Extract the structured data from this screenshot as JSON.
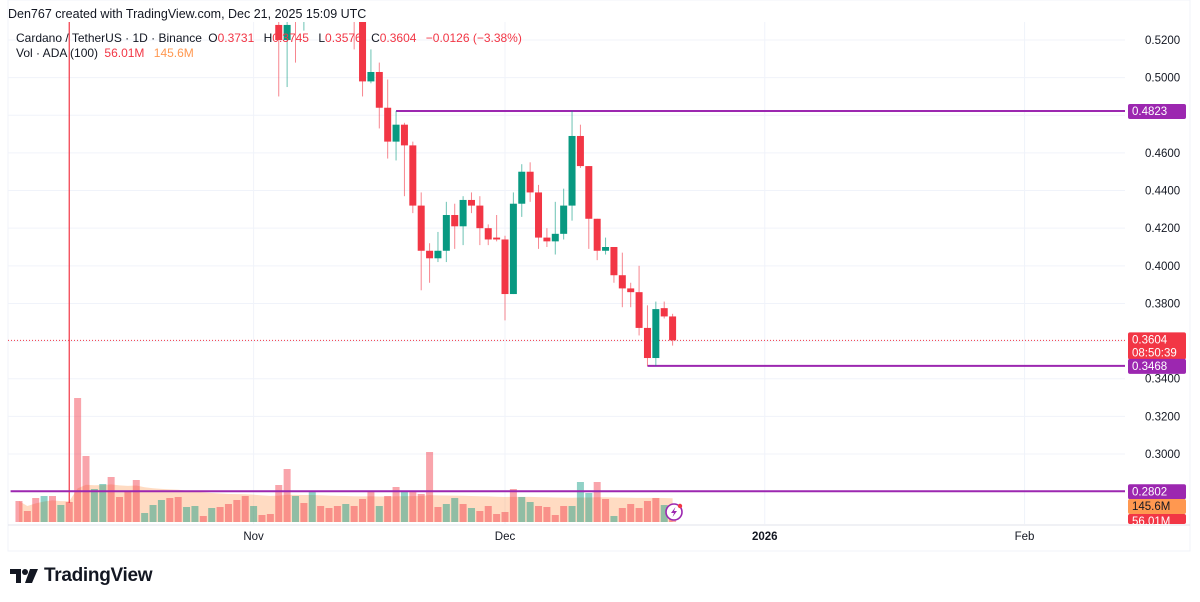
{
  "header": {
    "credit": "Den767 created with TradingView.com, Dec 21, 2025 15:09 UTC",
    "symbol": "Cardano / TetherUS · 1D · Binance",
    "ohlc": {
      "o_label": "O",
      "o": "0.3731",
      "h_label": "H",
      "h": "0.3745",
      "l_label": "L",
      "l": "0.3576",
      "c_label": "C",
      "c": "0.3604",
      "change": "−0.0126 (−3.38%)"
    },
    "volume_legend": {
      "label": "Vol · ADA (100)",
      "vol": "56.01M",
      "ma": "145.6M"
    }
  },
  "colors": {
    "up": "#089981",
    "down": "#F23645",
    "drawing": "#9C27B0",
    "volume_ma": "#FF9850",
    "vline": "#F23645"
  },
  "price_axis": {
    "ticks": [
      "0.5200",
      "0.5000",
      "0.4600",
      "0.4400",
      "0.4200",
      "0.4000",
      "0.3800",
      "0.3400",
      "0.3200",
      "0.3000"
    ]
  },
  "time_axis": {
    "labels": [
      {
        "date": "2025-11-01",
        "label": "Nov"
      },
      {
        "date": "2025-12-01",
        "label": "Dec"
      },
      {
        "date": "2026-01-01",
        "label": "2026"
      },
      {
        "date": "2026-02-01",
        "label": "Feb"
      }
    ]
  },
  "tags": {
    "last_price": "0.3604",
    "countdown": "08:50:39",
    "level_high": "0.4823",
    "level_low": "0.3468",
    "level_vol": "0.2802",
    "vol_ma": "145.6M",
    "vol_last": "56.01M"
  },
  "horizontal_levels": [
    {
      "price": 0.4823,
      "from": "2025-11-18"
    },
    {
      "price": 0.3468,
      "from": "2025-12-18"
    },
    {
      "price": 0.2802,
      "from": "2025-10-03"
    }
  ],
  "vertical_line_date": "2025-10-10",
  "candles": [
    [
      "2025-11-04",
      0.528,
      0.535,
      0.49,
      0.52
    ],
    [
      "2025-11-05",
      0.52,
      0.535,
      0.495,
      0.528
    ],
    [
      "2025-11-06",
      0.545,
      0.55,
      0.508,
      0.535
    ],
    [
      "2025-11-07",
      0.545,
      0.56,
      0.525,
      0.555
    ],
    [
      "2025-11-13",
      0.56,
      0.57,
      0.515,
      0.535
    ],
    [
      "2025-11-14",
      0.535,
      0.54,
      0.49,
      0.498
    ],
    [
      "2025-11-15",
      0.498,
      0.515,
      0.497,
      0.503
    ],
    [
      "2025-11-16",
      0.503,
      0.508,
      0.473,
      0.484
    ],
    [
      "2025-11-17",
      0.484,
      0.499,
      0.457,
      0.466
    ],
    [
      "2025-11-18",
      0.466,
      0.4823,
      0.456,
      0.475
    ],
    [
      "2025-11-19",
      0.475,
      0.476,
      0.437,
      0.464
    ],
    [
      "2025-11-20",
      0.464,
      0.466,
      0.428,
      0.432
    ],
    [
      "2025-11-21",
      0.432,
      0.439,
      0.387,
      0.408
    ],
    [
      "2025-11-22",
      0.408,
      0.412,
      0.391,
      0.404
    ],
    [
      "2025-11-23",
      0.404,
      0.418,
      0.402,
      0.408
    ],
    [
      "2025-11-24",
      0.408,
      0.434,
      0.402,
      0.427
    ],
    [
      "2025-11-25",
      0.427,
      0.433,
      0.409,
      0.421
    ],
    [
      "2025-11-26",
      0.421,
      0.437,
      0.411,
      0.435
    ],
    [
      "2025-11-27",
      0.435,
      0.439,
      0.428,
      0.432
    ],
    [
      "2025-11-28",
      0.432,
      0.437,
      0.411,
      0.42
    ],
    [
      "2025-11-29",
      0.42,
      0.422,
      0.411,
      0.414
    ],
    [
      "2025-11-30",
      0.415,
      0.427,
      0.413,
      0.414
    ],
    [
      "2025-12-01",
      0.414,
      0.416,
      0.371,
      0.385
    ],
    [
      "2025-12-02",
      0.385,
      0.439,
      0.385,
      0.433
    ],
    [
      "2025-12-03",
      0.433,
      0.454,
      0.426,
      0.45
    ],
    [
      "2025-12-04",
      0.45,
      0.455,
      0.434,
      0.439
    ],
    [
      "2025-12-05",
      0.439,
      0.443,
      0.409,
      0.415
    ],
    [
      "2025-12-06",
      0.415,
      0.42,
      0.41,
      0.413
    ],
    [
      "2025-12-07",
      0.413,
      0.434,
      0.406,
      0.417
    ],
    [
      "2025-12-08",
      0.417,
      0.441,
      0.414,
      0.432
    ],
    [
      "2025-12-09",
      0.432,
      0.4823,
      0.424,
      0.469
    ],
    [
      "2025-12-10",
      0.469,
      0.475,
      0.452,
      0.453
    ],
    [
      "2025-12-11",
      0.453,
      0.453,
      0.409,
      0.425
    ],
    [
      "2025-12-12",
      0.425,
      0.425,
      0.403,
      0.408
    ],
    [
      "2025-12-13",
      0.408,
      0.415,
      0.406,
      0.41
    ],
    [
      "2025-12-14",
      0.41,
      0.41,
      0.391,
      0.395
    ],
    [
      "2025-12-15",
      0.395,
      0.407,
      0.378,
      0.388
    ],
    [
      "2025-12-16",
      0.388,
      0.391,
      0.378,
      0.386
    ],
    [
      "2025-12-17",
      0.386,
      0.4,
      0.363,
      0.367
    ],
    [
      "2025-12-18",
      0.367,
      0.379,
      0.3468,
      0.351
    ],
    [
      "2025-12-19",
      0.351,
      0.381,
      0.3468,
      0.377
    ],
    [
      "2025-12-20",
      0.3775,
      0.381,
      0.372,
      0.3731
    ],
    [
      "2025-12-21",
      0.3731,
      0.3745,
      0.3576,
      0.3604
    ]
  ],
  "volume": {
    "start": "2025-10-04",
    "values_m": [
      126,
      66,
      144,
      156,
      156,
      102,
      120,
      744,
      396,
      198,
      228,
      270,
      150,
      180,
      252,
      54,
      102,
      132,
      144,
      150,
      90,
      96,
      36,
      84,
      90,
      108,
      132,
      156,
      96,
      42,
      48,
      222,
      318,
      156,
      114,
      186,
      96,
      84,
      96,
      108,
      96,
      138,
      180,
      96,
      156,
      210,
      180,
      180,
      168,
      420,
      90,
      108,
      144,
      108,
      84,
      66,
      96,
      48,
      60,
      198,
      150,
      120,
      96,
      90,
      42,
      96,
      96,
      240,
      174,
      240,
      138,
      36,
      84,
      108,
      84,
      126,
      144,
      102,
      56.01
    ],
    "up": [
      0,
      0,
      0,
      1,
      0,
      1,
      0,
      0,
      0,
      1,
      1,
      0,
      0,
      0,
      0,
      1,
      1,
      1,
      0,
      0,
      1,
      1,
      0,
      1,
      0,
      0,
      0,
      0,
      1,
      0,
      0,
      0,
      0,
      1,
      0,
      1,
      0,
      0,
      0,
      1,
      0,
      0,
      0,
      1,
      0,
      0,
      1,
      0,
      0,
      0,
      0,
      1,
      1,
      0,
      1,
      0,
      0,
      0,
      0,
      0,
      1,
      1,
      0,
      0,
      0,
      0,
      1,
      1,
      1,
      0,
      0,
      1,
      0,
      0,
      0,
      0,
      0,
      1,
      0
    ]
  },
  "logo": {
    "text": "TradingView"
  }
}
